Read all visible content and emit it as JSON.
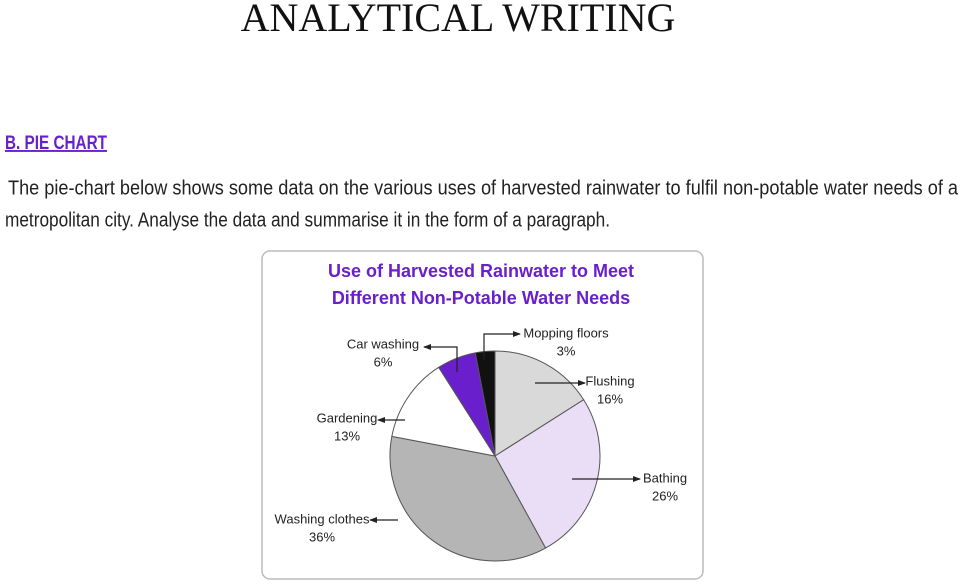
{
  "header": {
    "title": "ANALYTICAL WRITING"
  },
  "section": {
    "heading": "B. PIE CHART",
    "paragraph": [
      "The pie-chart below shows some data on the various uses of harvested rainwater to fulfil non-potable water needs of a",
      "metropolitan city. Analyse the data and summarise it in the form of a paragraph."
    ]
  },
  "chart_data": {
    "type": "pie",
    "title": [
      "Use of Harvested Rainwater to Meet",
      "Different Non-Potable Water Needs"
    ],
    "categories": [
      "Flushing",
      "Bathing",
      "Washing clothes",
      "Gardening",
      "Car washing",
      "Mopping floors"
    ],
    "values": [
      16,
      26,
      36,
      13,
      6,
      3
    ],
    "value_labels": [
      "16%",
      "26%",
      "36%",
      "13%",
      "6%",
      "3%"
    ],
    "colors": [
      "#d9d9d9",
      "#e9def6",
      "#b5b5b5",
      "#ffffff",
      "#6a1fcc",
      "#111111"
    ]
  }
}
